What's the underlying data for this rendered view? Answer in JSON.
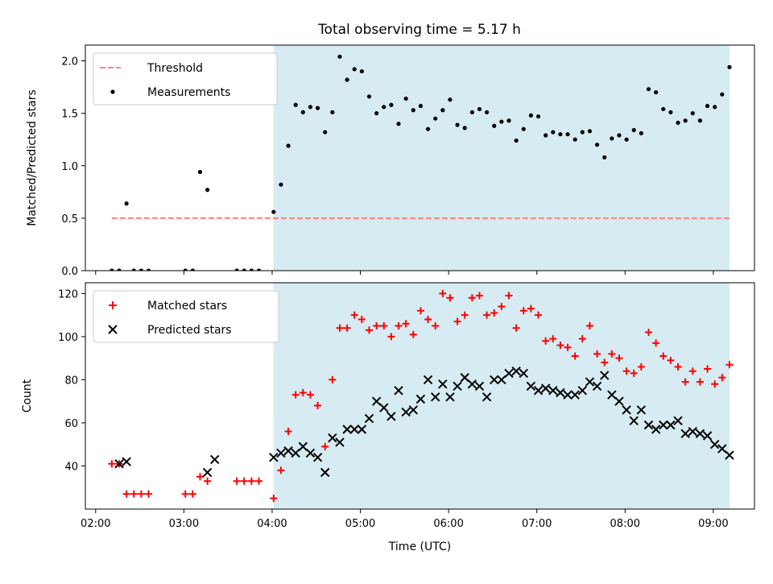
{
  "title": "Total observing time = 5.17 h",
  "colors": {
    "shade": "#add8e6",
    "threshold": "#ff7f7f",
    "matched": "#ff0000",
    "predicted": "#000000",
    "measure": "#000000"
  },
  "chart_data": [
    {
      "type": "scatter",
      "ylabel": "Matched/Predicted stars",
      "xlabel": "",
      "ylim": [
        0,
        2.15
      ],
      "yticks": [
        "0.0",
        "0.5",
        "1.0",
        "1.5",
        "2.0"
      ],
      "ytick_values": [
        0,
        0.5,
        1.0,
        1.5,
        2.0
      ],
      "shaded_span": [
        "04:01",
        "09:11"
      ],
      "threshold": {
        "value": 0.5,
        "x": [
          "02:11",
          "09:11"
        ]
      },
      "legend": [
        "Threshold",
        "Measurements"
      ],
      "legend_position": "upper-left",
      "series": [
        {
          "name": "Measurements",
          "x": [
            "02:11",
            "02:16",
            "02:21",
            "02:26",
            "02:31",
            "02:36",
            "03:01",
            "03:06",
            "03:11",
            "03:16",
            "03:36",
            "03:41",
            "03:46",
            "03:51",
            "04:01",
            "04:06",
            "04:11",
            "04:16",
            "04:21",
            "04:26",
            "04:31",
            "04:36",
            "04:41",
            "04:46",
            "04:51",
            "04:56",
            "05:01",
            "05:06",
            "05:11",
            "05:16",
            "05:21",
            "05:26",
            "05:31",
            "05:36",
            "05:41",
            "05:46",
            "05:51",
            "05:56",
            "06:01",
            "06:06",
            "06:11",
            "06:16",
            "06:21",
            "06:26",
            "06:31",
            "06:36",
            "06:41",
            "06:46",
            "06:51",
            "06:56",
            "07:01",
            "07:06",
            "07:11",
            "07:16",
            "07:21",
            "07:26",
            "07:31",
            "07:36",
            "07:41",
            "07:46",
            "07:51",
            "07:56",
            "08:01",
            "08:06",
            "08:11",
            "08:16",
            "08:21",
            "08:26",
            "08:31",
            "08:36",
            "08:41",
            "08:46",
            "08:51",
            "08:56",
            "09:01",
            "09:06",
            "09:11"
          ],
          "y": [
            0,
            0,
            0.64,
            0,
            0,
            0,
            0,
            0,
            0.94,
            0.77,
            0,
            0,
            0,
            0,
            0.56,
            0.82,
            1.19,
            1.58,
            1.51,
            1.56,
            1.55,
            1.32,
            1.51,
            2.04,
            1.82,
            1.92,
            1.9,
            1.66,
            1.5,
            1.56,
            1.58,
            1.4,
            1.64,
            1.53,
            1.57,
            1.35,
            1.45,
            1.53,
            1.63,
            1.39,
            1.36,
            1.51,
            1.54,
            1.51,
            1.38,
            1.42,
            1.43,
            1.24,
            1.35,
            1.48,
            1.47,
            1.29,
            1.32,
            1.3,
            1.3,
            1.25,
            1.32,
            1.33,
            1.2,
            1.08,
            1.26,
            1.29,
            1.25,
            1.34,
            1.31,
            1.73,
            1.7,
            1.54,
            1.51,
            1.41,
            1.43,
            1.5,
            1.43,
            1.57,
            1.56,
            1.68,
            1.94
          ]
        }
      ]
    },
    {
      "type": "scatter",
      "ylabel": "Count",
      "xlabel": "Time (UTC)",
      "ylim": [
        20,
        125
      ],
      "yticks": [
        "40",
        "60",
        "80",
        "100",
        "120"
      ],
      "ytick_values": [
        40,
        60,
        80,
        100,
        120
      ],
      "xlim": [
        "01:53",
        "09:28"
      ],
      "xticks": [
        "02:00",
        "03:00",
        "04:00",
        "05:00",
        "06:00",
        "07:00",
        "08:00",
        "09:00"
      ],
      "shaded_span": [
        "04:01",
        "09:11"
      ],
      "legend": [
        "Matched stars",
        "Predicted stars"
      ],
      "legend_position": "upper-left",
      "series": [
        {
          "name": "Matched stars",
          "x": [
            "02:11",
            "02:16",
            "02:21",
            "02:26",
            "02:31",
            "02:36",
            "03:01",
            "03:06",
            "03:11",
            "03:16",
            "03:36",
            "03:41",
            "03:46",
            "03:51",
            "04:01",
            "04:06",
            "04:11",
            "04:16",
            "04:21",
            "04:26",
            "04:31",
            "04:36",
            "04:41",
            "04:46",
            "04:51",
            "04:56",
            "05:01",
            "05:06",
            "05:11",
            "05:16",
            "05:21",
            "05:26",
            "05:31",
            "05:36",
            "05:41",
            "05:46",
            "05:51",
            "05:56",
            "06:01",
            "06:06",
            "06:11",
            "06:16",
            "06:21",
            "06:26",
            "06:31",
            "06:36",
            "06:41",
            "06:46",
            "06:51",
            "06:56",
            "07:01",
            "07:06",
            "07:11",
            "07:16",
            "07:21",
            "07:26",
            "07:31",
            "07:36",
            "07:41",
            "07:46",
            "07:51",
            "07:56",
            "08:01",
            "08:06",
            "08:11",
            "08:16",
            "08:21",
            "08:26",
            "08:31",
            "08:36",
            "08:41",
            "08:46",
            "08:51",
            "08:56",
            "09:01",
            "09:06",
            "09:11"
          ],
          "y": [
            41,
            41,
            27,
            27,
            27,
            27,
            27,
            27,
            35,
            33,
            33,
            33,
            33,
            33,
            25,
            38,
            56,
            73,
            74,
            73,
            68,
            49,
            80,
            104,
            104,
            110,
            108,
            103,
            105,
            105,
            100,
            105,
            106,
            101,
            112,
            108,
            105,
            120,
            118,
            107,
            110,
            118,
            119,
            110,
            111,
            114,
            119,
            104,
            112,
            113,
            110,
            98,
            99,
            96,
            95,
            91,
            99,
            105,
            92,
            88,
            92,
            90,
            84,
            83,
            86,
            102,
            97,
            91,
            89,
            86,
            79,
            84,
            79,
            85,
            78,
            81,
            87
          ]
        },
        {
          "name": "Predicted stars",
          "x": [
            "02:16",
            "02:21",
            "03:16",
            "03:21",
            "04:01",
            "04:06",
            "04:11",
            "04:16",
            "04:21",
            "04:26",
            "04:31",
            "04:36",
            "04:41",
            "04:46",
            "04:51",
            "04:56",
            "05:01",
            "05:06",
            "05:11",
            "05:16",
            "05:21",
            "05:26",
            "05:31",
            "05:36",
            "05:41",
            "05:46",
            "05:51",
            "05:56",
            "06:01",
            "06:06",
            "06:11",
            "06:16",
            "06:21",
            "06:26",
            "06:31",
            "06:36",
            "06:41",
            "06:46",
            "06:51",
            "06:56",
            "07:01",
            "07:06",
            "07:11",
            "07:16",
            "07:21",
            "07:26",
            "07:31",
            "07:36",
            "07:41",
            "07:46",
            "07:51",
            "07:56",
            "08:01",
            "08:06",
            "08:11",
            "08:16",
            "08:21",
            "08:26",
            "08:31",
            "08:36",
            "08:41",
            "08:46",
            "08:51",
            "08:56",
            "09:01",
            "09:06",
            "09:11"
          ],
          "y": [
            41,
            42,
            37,
            43,
            44,
            46,
            47,
            46,
            49,
            46,
            44,
            37,
            53,
            51,
            57,
            57,
            57,
            62,
            70,
            67,
            63,
            75,
            65,
            66,
            71,
            80,
            72,
            78,
            72,
            77,
            81,
            78,
            77,
            72,
            80,
            80,
            83,
            84,
            83,
            77,
            75,
            76,
            75,
            74,
            73,
            73,
            75,
            79,
            77,
            82,
            73,
            70,
            66,
            61,
            66,
            59,
            57,
            59,
            59,
            61,
            55,
            56,
            55,
            54,
            50,
            48,
            45
          ]
        }
      ]
    }
  ]
}
